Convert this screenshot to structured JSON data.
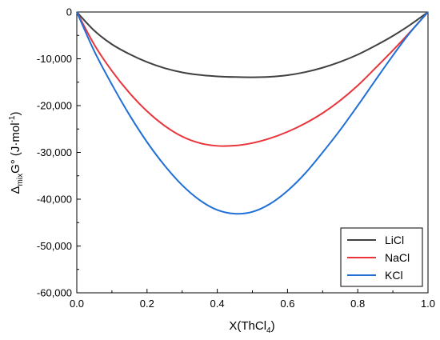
{
  "chart_data": {
    "type": "line",
    "xlabel": "X(ThCl",
    "xlabel_sub": "4",
    "xlabel_end": ")",
    "ylabel": {
      "delta": "Δ",
      "sub": "mix",
      "main": "G°",
      "unit": " (J·mol",
      "sup": "-1",
      "end": ")"
    },
    "xlim": [
      0.0,
      1.0
    ],
    "ylim": [
      -60000,
      0
    ],
    "xticks": [
      0.0,
      0.2,
      0.4,
      0.6,
      0.8,
      1.0
    ],
    "xtick_labels": [
      "0.0",
      "0.2",
      "0.4",
      "0.6",
      "0.8",
      "1.0"
    ],
    "yticks": [
      0,
      -10000,
      -20000,
      -30000,
      -40000,
      -50000,
      -60000
    ],
    "ytick_labels": [
      "0",
      "-10,000",
      "-20,000",
      "-30,000",
      "-40,000",
      "-50,000",
      "-60,000"
    ],
    "grid": false,
    "legend_position": "bottom-right",
    "x": [
      0.0,
      0.05,
      0.1,
      0.15,
      0.2,
      0.25,
      0.3,
      0.35,
      0.4,
      0.45,
      0.5,
      0.55,
      0.6,
      0.65,
      0.7,
      0.75,
      0.8,
      0.85,
      0.9,
      0.95,
      1.0
    ],
    "series": [
      {
        "name": "LiCl",
        "color": "#404040",
        "values": [
          0,
          -4000,
          -6900,
          -9000,
          -10700,
          -12000,
          -12900,
          -13450,
          -13750,
          -13900,
          -13950,
          -13850,
          -13500,
          -12850,
          -11900,
          -10650,
          -9100,
          -7200,
          -5100,
          -2700,
          0
        ]
      },
      {
        "name": "NaCl",
        "color": "#e8343a",
        "values": [
          0,
          -7000,
          -12600,
          -17300,
          -21200,
          -24300,
          -26600,
          -28000,
          -28600,
          -28550,
          -28000,
          -27000,
          -25600,
          -23800,
          -21600,
          -18900,
          -15700,
          -12000,
          -8200,
          -4200,
          0
        ]
      },
      {
        "name": "KCl",
        "color": "#1f6fd6",
        "values": [
          0,
          -8400,
          -15500,
          -22000,
          -27800,
          -32800,
          -37000,
          -40200,
          -42300,
          -43100,
          -42700,
          -41000,
          -38200,
          -34500,
          -30000,
          -25200,
          -20000,
          -14600,
          -9300,
          -4300,
          0
        ]
      }
    ]
  }
}
